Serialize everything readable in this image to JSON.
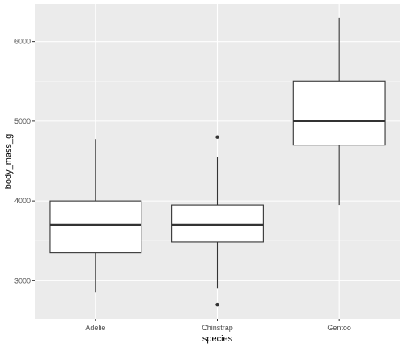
{
  "chart_data": {
    "type": "box",
    "xlabel": "species",
    "ylabel": "body_mass_g",
    "ylim": [
      2520,
      6470
    ],
    "y_ticks": [
      3000,
      4000,
      5000,
      6000
    ],
    "grid": true,
    "categories": [
      "Adelie",
      "Chinstrap",
      "Gentoo"
    ],
    "boxes": [
      {
        "category": "Adelie",
        "lower_whisker": 2850,
        "q1": 3350,
        "median": 3700,
        "q3": 4000,
        "upper_whisker": 4775,
        "outliers": []
      },
      {
        "category": "Chinstrap",
        "lower_whisker": 2900,
        "q1": 3488,
        "median": 3700,
        "q3": 3950,
        "upper_whisker": 4550,
        "outliers": [
          2700,
          4800
        ]
      },
      {
        "category": "Gentoo",
        "lower_whisker": 3950,
        "q1": 4700,
        "median": 5000,
        "q3": 5500,
        "upper_whisker": 6300,
        "outliers": []
      }
    ],
    "colors": {
      "panel": "#ebebeb",
      "grid_major": "#ffffff",
      "grid_minor": "#f5f5f5",
      "box_fill": "#ffffff",
      "line": "#333333"
    }
  }
}
